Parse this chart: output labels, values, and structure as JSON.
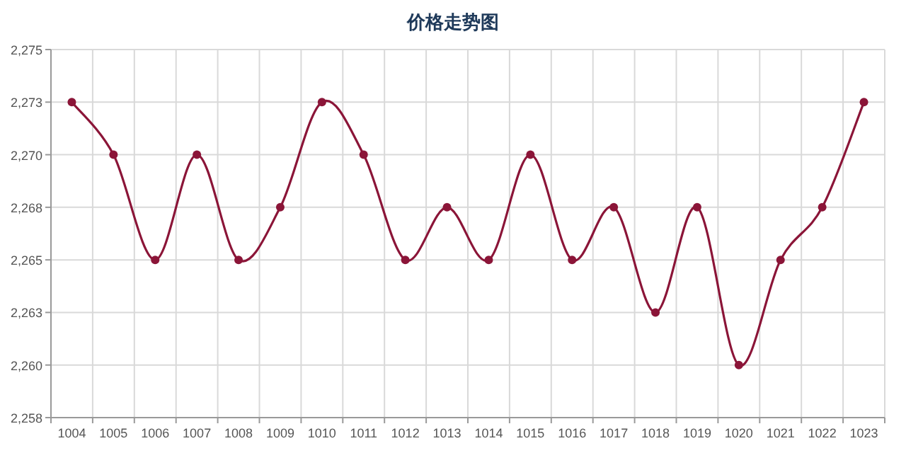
{
  "chart_data": {
    "type": "line",
    "title": "价格走势图",
    "categories": [
      "1004",
      "1005",
      "1006",
      "1007",
      "1008",
      "1009",
      "1010",
      "1011",
      "1012",
      "1013",
      "1014",
      "1015",
      "1016",
      "1017",
      "1018",
      "1019",
      "1020",
      "1021",
      "1022",
      "1023"
    ],
    "series": [
      {
        "color": "#8b1538",
        "values": [
          2272.5,
          2270,
          2265,
          2270,
          2265,
          2267.5,
          2272.5,
          2270,
          2265,
          2267.5,
          2265,
          2270,
          2265,
          2267.5,
          2262.5,
          2267.5,
          2260,
          2265,
          2267.5,
          2272.5
        ]
      }
    ],
    "ylim": [
      2257.5,
      2275
    ],
    "yticks": [
      {
        "value": 2257.5,
        "label": "2,258"
      },
      {
        "value": 2260,
        "label": "2,260"
      },
      {
        "value": 2262.5,
        "label": "2,263"
      },
      {
        "value": 2265,
        "label": "2,265"
      },
      {
        "value": 2267.5,
        "label": "2,268"
      },
      {
        "value": 2270,
        "label": "2,270"
      },
      {
        "value": 2272.5,
        "label": "2,273"
      },
      {
        "value": 2275,
        "label": "2,275"
      }
    ],
    "grid": true,
    "marker": "circle",
    "line_style": "solid"
  }
}
